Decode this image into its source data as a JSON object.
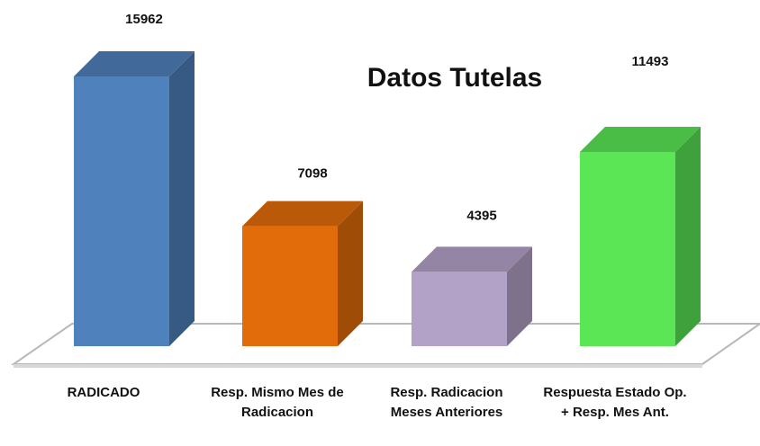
{
  "chart_data": {
    "type": "bar3d",
    "title": "Datos Tutelas",
    "categories": [
      "RADICADO",
      "Resp. Mismo Mes de Radicacion",
      "Resp. Radicacion Meses Anteriores",
      "Respuesta Estado Op. + Resp. Mes Ant."
    ],
    "values": [
      15962,
      7098,
      4395,
      11493
    ],
    "colors": [
      "#4f81bd",
      "#e36c0a",
      "#b3a2c7",
      "#5ae655"
    ]
  }
}
